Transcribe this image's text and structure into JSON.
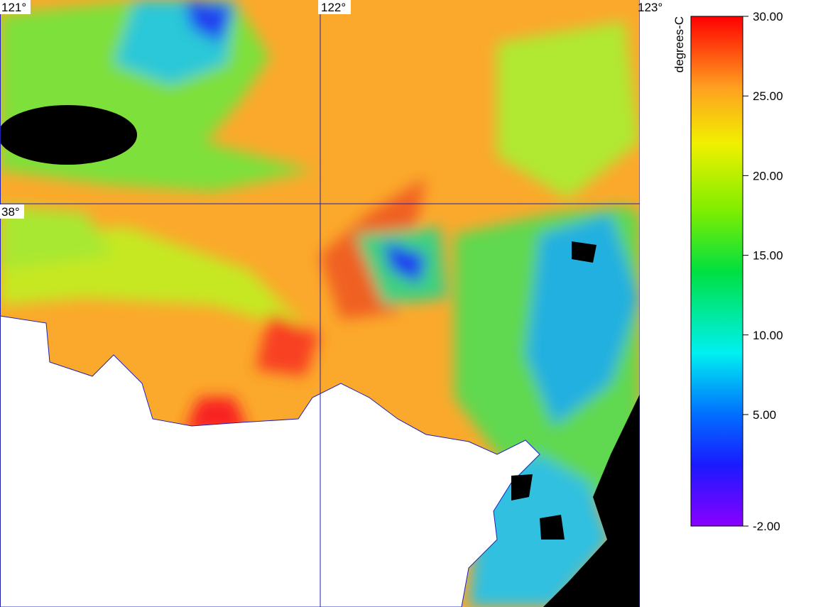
{
  "map": {
    "lon_labels": [
      "121°",
      "122°",
      "123°"
    ],
    "lat_labels": [
      "38°"
    ]
  },
  "colorbar": {
    "unit": "degrees-C",
    "range": [
      -2,
      30
    ],
    "ticks": [
      {
        "value": 30,
        "label": "30.00"
      },
      {
        "value": 25,
        "label": "25.00"
      },
      {
        "value": 20,
        "label": "20.00"
      },
      {
        "value": 15,
        "label": "15.00"
      },
      {
        "value": 10,
        "label": "10.00"
      },
      {
        "value": 5,
        "label": "5.00"
      },
      {
        "value": -2,
        "label": "-2.00"
      }
    ]
  }
}
